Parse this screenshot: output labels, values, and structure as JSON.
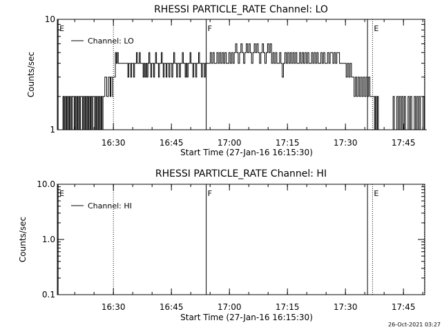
{
  "timestamp": "26-Oct-2021 03:27",
  "chart_data": [
    {
      "type": "line",
      "title": "RHESSI PARTICLE_RATE Channel: LO",
      "xlabel": "Start Time (27-Jan-16 16:15:30)",
      "ylabel": "Counts/sec",
      "yscale": "log",
      "ylim": [
        1,
        10
      ],
      "xlim_minutes": [
        0,
        95
      ],
      "y_ticks": [
        "1",
        "10"
      ],
      "x_ticks": [
        {
          "t": 14.5,
          "label": "16:30"
        },
        {
          "t": 29.5,
          "label": "16:45"
        },
        {
          "t": 44.5,
          "label": "17:00"
        },
        {
          "t": 59.5,
          "label": "17:15"
        },
        {
          "t": 74.5,
          "label": "17:30"
        },
        {
          "t": 89.5,
          "label": "17:45"
        }
      ],
      "legend": {
        "label": "Channel: LO",
        "position": "top-left"
      },
      "markers": [
        {
          "t": 0.2,
          "label": "E",
          "style": "solid"
        },
        {
          "t": 14.5,
          "label": "",
          "style": "dotted"
        },
        {
          "t": 38.5,
          "label": "F",
          "style": "solid"
        },
        {
          "t": 80.2,
          "label": "",
          "style": "solid"
        },
        {
          "t": 81.5,
          "label": "E",
          "style": "dotted"
        },
        {
          "t": 96.2,
          "label": "",
          "style": "dotted"
        }
      ],
      "series": [
        {
          "segments": [
            {
              "t_start": 1.2,
              "t_end": 13.0,
              "values": [
                1,
                2,
                1,
                2,
                1,
                2,
                1,
                2,
                1,
                2,
                1,
                2,
                2,
                1,
                2,
                1,
                2,
                1,
                2,
                1,
                2,
                2,
                1,
                2,
                1,
                2,
                1,
                2,
                1,
                2,
                1,
                2,
                1,
                2,
                2,
                1,
                2,
                1,
                2,
                1,
                2,
                1,
                2,
                1,
                2,
                2,
                3,
                3,
                2
              ]
            },
            {
              "t_start": 13.0,
              "t_end": 14.5,
              "values": [
                2,
                3,
                3,
                2,
                3,
                3,
                2
              ]
            },
            {
              "t_start": 14.5,
              "t_end": 16.5,
              "values": [
                3,
                3,
                5,
                4,
                5,
                4,
                4,
                4
              ]
            },
            {
              "t_start": 16.5,
              "t_end": 38.5,
              "values": [
                4,
                4,
                4,
                4,
                4,
                4,
                4,
                3,
                4,
                4,
                3,
                4,
                4,
                3,
                4,
                4,
                5,
                4,
                4,
                5,
                4,
                4,
                4,
                3,
                4,
                3,
                4,
                3,
                4,
                5,
                4,
                3,
                4,
                4,
                3,
                4,
                5,
                4,
                4,
                3,
                4,
                4,
                5,
                4,
                3,
                4,
                4,
                3,
                4,
                4,
                3,
                4,
                4,
                3,
                4,
                5,
                4,
                4,
                3,
                4,
                4,
                3,
                4,
                4,
                5,
                4,
                4,
                3,
                4,
                3,
                4,
                4,
                5,
                4,
                4,
                3,
                4,
                4,
                3,
                4,
                4,
                5,
                4,
                4,
                3,
                4,
                4,
                3,
                4
              ]
            },
            {
              "t_start": 38.5,
              "t_end": 74.0,
              "values": [
                4,
                4,
                4,
                5,
                4,
                5,
                4,
                4,
                5,
                4,
                5,
                4,
                5,
                4,
                5,
                4,
                4,
                5,
                4,
                5,
                4,
                5,
                6,
                5,
                4,
                5,
                6,
                5,
                4,
                5,
                6,
                5,
                6,
                5,
                4,
                5,
                6,
                5,
                6,
                5,
                4,
                5,
                6,
                5,
                4,
                5,
                6,
                5,
                6,
                4,
                5,
                4,
                5,
                4,
                4,
                5,
                4,
                3,
                4,
                5,
                4,
                5,
                4,
                5,
                4,
                5,
                4,
                5,
                4,
                4,
                5,
                4,
                5,
                4,
                5,
                4,
                5,
                4,
                4,
                5,
                4,
                5,
                4,
                5,
                4,
                4,
                5,
                4,
                5,
                4,
                4,
                5,
                4,
                5,
                5,
                4,
                5,
                4,
                5,
                5,
                4,
                4,
                4
              ]
            },
            {
              "t_start": 74.0,
              "t_end": 81.5,
              "values": [
                4,
                4,
                3,
                4,
                3,
                4,
                3,
                3,
                2,
                3,
                2,
                3,
                2,
                3,
                2,
                3,
                2,
                3,
                2,
                3,
                2,
                2
              ]
            },
            {
              "t_start": 81.5,
              "t_end": 83.5,
              "values": [
                2,
                2,
                1,
                2,
                1,
                2,
                1,
                1
              ]
            },
            {
              "t_start": 86.5,
              "t_end": 95.5,
              "values": [
                1,
                2,
                1,
                1,
                2,
                1,
                2,
                1,
                2,
                1,
                2,
                1,
                1,
                2,
                1,
                2,
                1,
                1,
                2,
                1,
                2,
                1,
                2,
                1,
                1,
                2,
                1,
                1
              ]
            }
          ]
        }
      ]
    },
    {
      "type": "line",
      "title": "RHESSI PARTICLE_RATE Channel: HI",
      "xlabel": "Start Time (27-Jan-16 16:15:30)",
      "ylabel": "Counts/sec",
      "yscale": "log",
      "ylim": [
        0.1,
        10
      ],
      "xlim_minutes": [
        0,
        95
      ],
      "y_ticks": [
        "0.1",
        "1.0",
        "10.0"
      ],
      "x_ticks": [
        {
          "t": 14.5,
          "label": "16:30"
        },
        {
          "t": 29.5,
          "label": "16:45"
        },
        {
          "t": 44.5,
          "label": "17:00"
        },
        {
          "t": 59.5,
          "label": "17:15"
        },
        {
          "t": 74.5,
          "label": "17:30"
        },
        {
          "t": 89.5,
          "label": "17:45"
        }
      ],
      "legend": {
        "label": "Channel: HI",
        "position": "top-left"
      },
      "markers": [
        {
          "t": 0.2,
          "label": "E",
          "style": "solid"
        },
        {
          "t": 14.5,
          "label": "",
          "style": "dotted"
        },
        {
          "t": 38.5,
          "label": "F",
          "style": "solid"
        },
        {
          "t": 80.2,
          "label": "",
          "style": "solid"
        },
        {
          "t": 81.5,
          "label": "E",
          "style": "dotted"
        },
        {
          "t": 96.2,
          "label": "",
          "style": "dotted"
        }
      ],
      "series": [
        {
          "segments": []
        }
      ]
    }
  ]
}
